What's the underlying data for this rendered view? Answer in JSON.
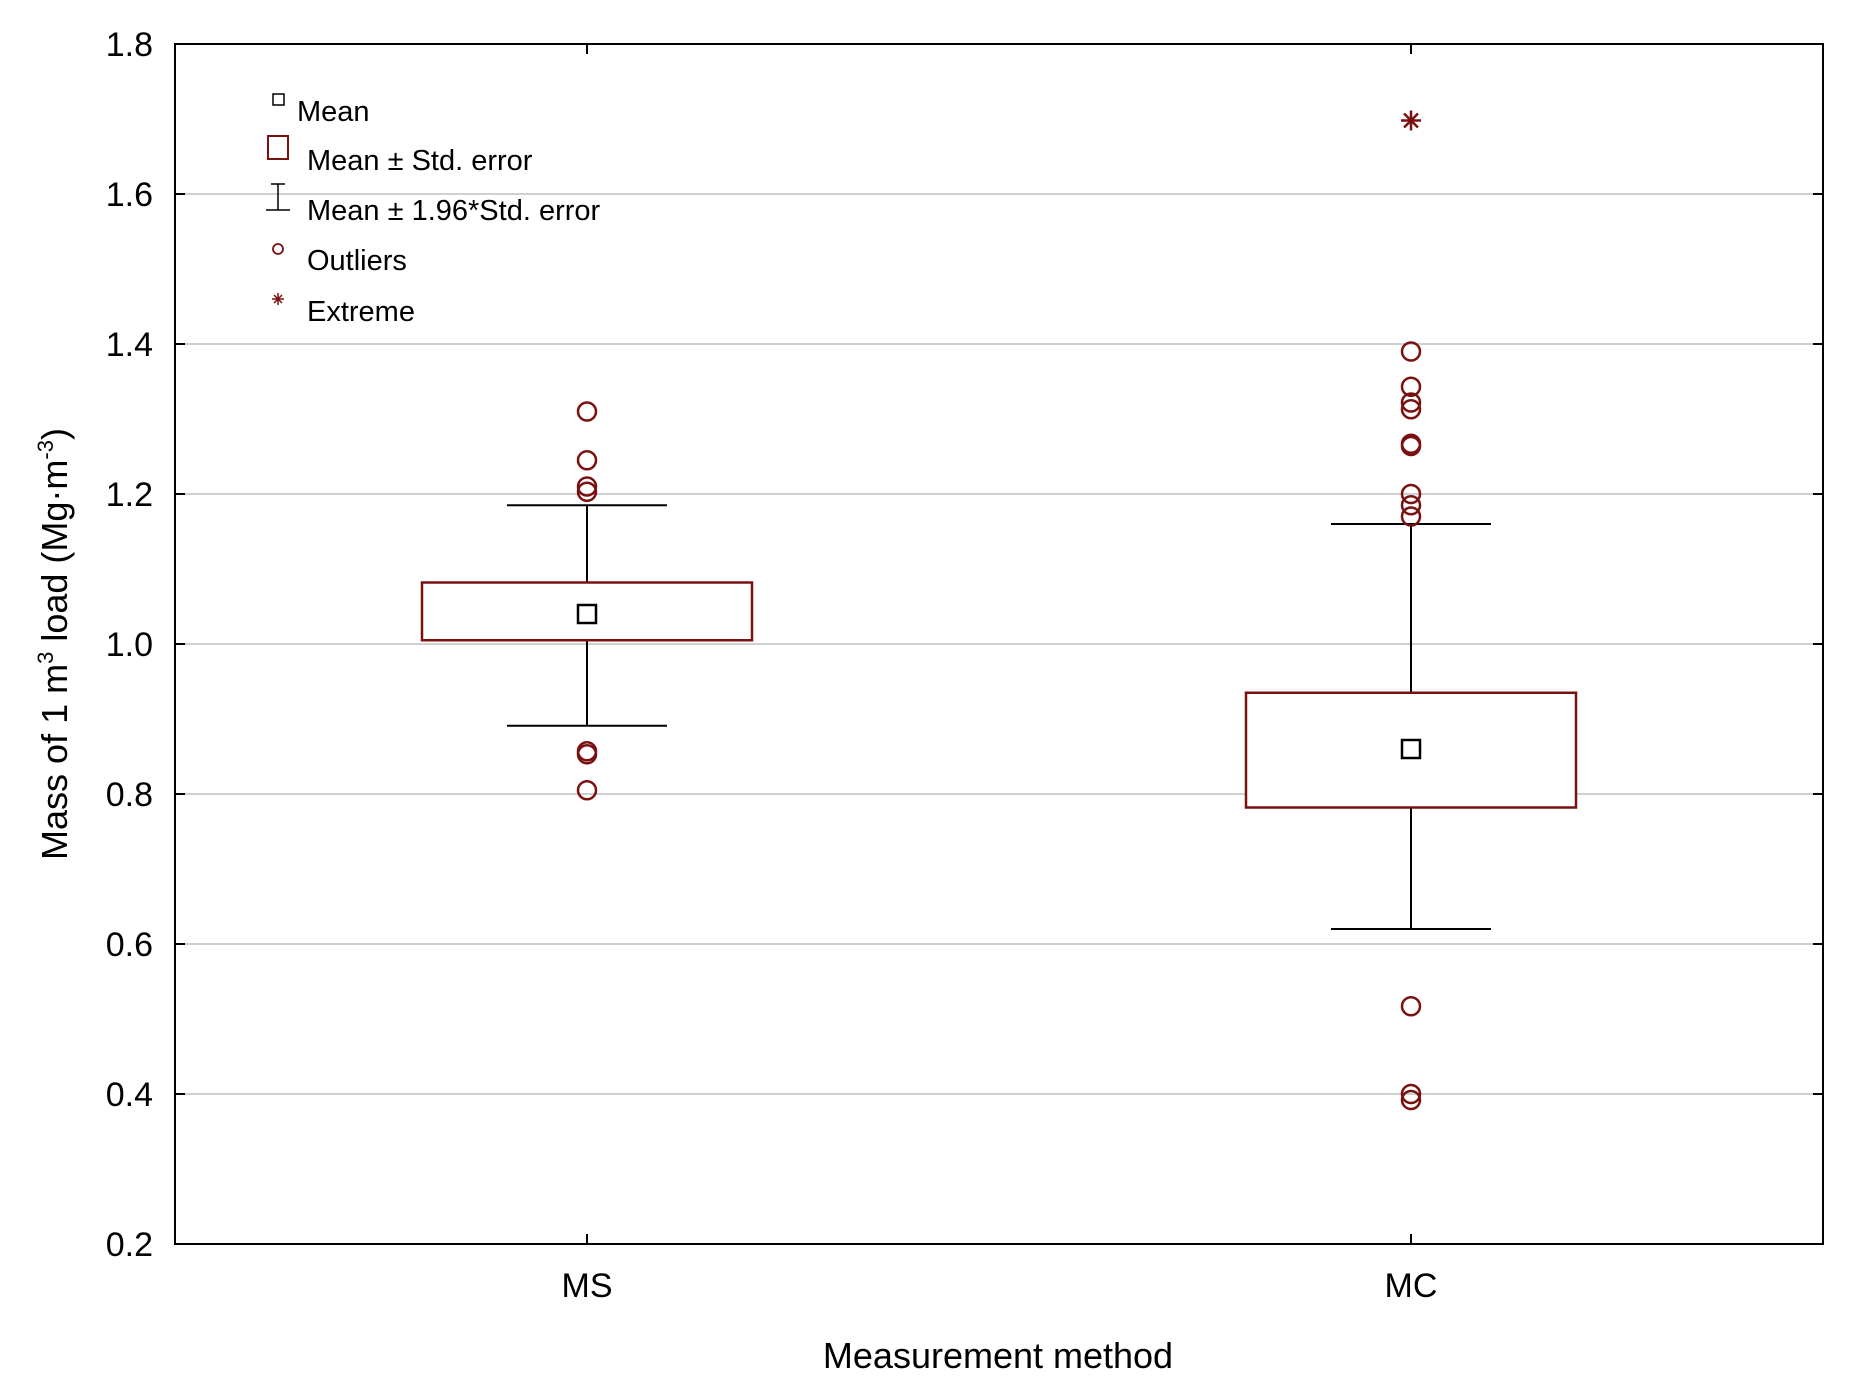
{
  "chart_data": {
    "type": "boxplot",
    "xlabel": "Measurement method",
    "ylabel": {
      "prefix": "Mass of 1 m",
      "sup1": "3",
      "middle": " load (Mg·m",
      "sup2": "-3",
      "suffix": ")"
    },
    "ylim": [
      0.2,
      1.8
    ],
    "yticks": [
      "0.2",
      "0.4",
      "0.6",
      "0.8",
      "1.0",
      "1.2",
      "1.4",
      "1.6",
      "1.8"
    ],
    "ytick_values": [
      0.2,
      0.4,
      0.6,
      0.8,
      1.0,
      1.2,
      1.4,
      1.6,
      1.8
    ],
    "grid": true,
    "categories": [
      "MS",
      "MC"
    ],
    "groups": [
      {
        "name": "MS",
        "mean": 1.04,
        "se_low": 1.005,
        "se_high": 1.082,
        "ci_low": 0.891,
        "ci_high": 1.185,
        "outliers": [
          1.31,
          1.245,
          1.21,
          1.203,
          0.857,
          0.853,
          0.805
        ],
        "extremes": []
      },
      {
        "name": "MC",
        "mean": 0.86,
        "se_low": 0.782,
        "se_high": 0.935,
        "ci_low": 0.62,
        "ci_high": 1.16,
        "outliers": [
          1.39,
          1.343,
          1.322,
          1.313,
          1.267,
          1.264,
          1.2,
          1.185,
          1.17,
          0.517,
          0.4,
          0.392
        ],
        "extremes": [
          1.698
        ]
      }
    ],
    "legend": {
      "position": "top-left",
      "items": [
        {
          "symbol": "mean",
          "label": "Mean"
        },
        {
          "symbol": "se-box",
          "label": "Mean ± Std. error"
        },
        {
          "symbol": "ci-whisker",
          "label": "Mean ±  1.96*Std. error"
        },
        {
          "symbol": "outlier",
          "label": "Outliers"
        },
        {
          "symbol": "extreme",
          "label": "Extreme"
        }
      ]
    },
    "colors": {
      "box": "#7b1010",
      "marker": "#7b1010",
      "axis": "#000000",
      "grid": "#d0d0d0",
      "mean": "#000000"
    }
  }
}
